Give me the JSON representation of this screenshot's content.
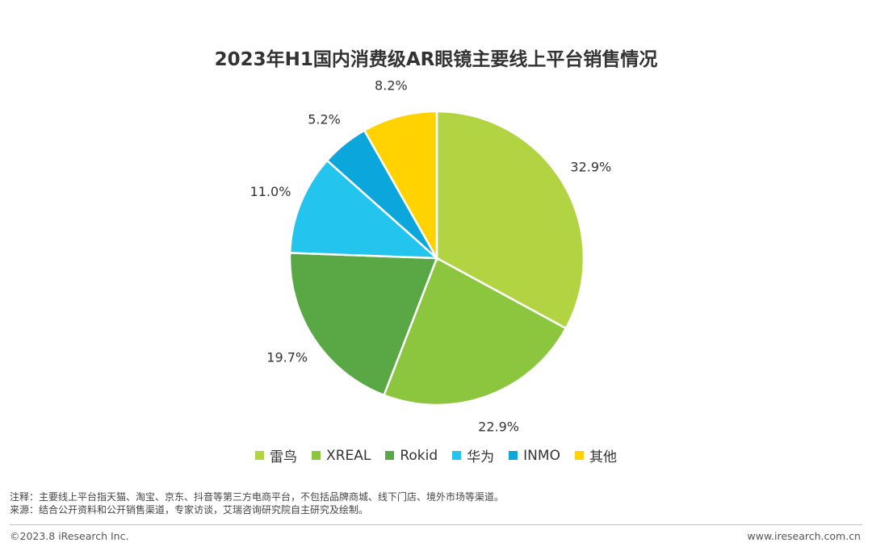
{
  "chart_data": {
    "type": "pie",
    "title": "2023年H1国内消费级AR眼镜主要线上平台销售情况",
    "slices": [
      {
        "name": "雷鸟",
        "value": 32.9,
        "label": "32.9%",
        "color": "#b3d442"
      },
      {
        "name": "XREAL",
        "value": 22.9,
        "label": "22.9%",
        "color": "#8cc63f"
      },
      {
        "name": "Rokid",
        "value": 19.7,
        "label": "19.7%",
        "color": "#5aa845"
      },
      {
        "name": "华为",
        "value": 11.0,
        "label": "11.0%",
        "color": "#23c4ee"
      },
      {
        "name": "INMO",
        "value": 5.2,
        "label": "5.2%",
        "color": "#0aa6dc"
      },
      {
        "name": "其他",
        "value": 8.2,
        "label": "8.2%",
        "color": "#ffd200"
      }
    ],
    "legend_position": "bottom"
  },
  "notes": {
    "note": "注释：主要线上平台指天猫、淘宝、京东、抖音等第三方电商平台，不包括品牌商城、线下门店、境外市场等渠道。",
    "source": "来源：结合公开资料和公开销售渠道，专家访谈，艾瑞咨询研究院自主研究及绘制。"
  },
  "footer": {
    "copyright": "©2023.8 iResearch Inc.",
    "website": "www.iresearch.com.cn"
  }
}
